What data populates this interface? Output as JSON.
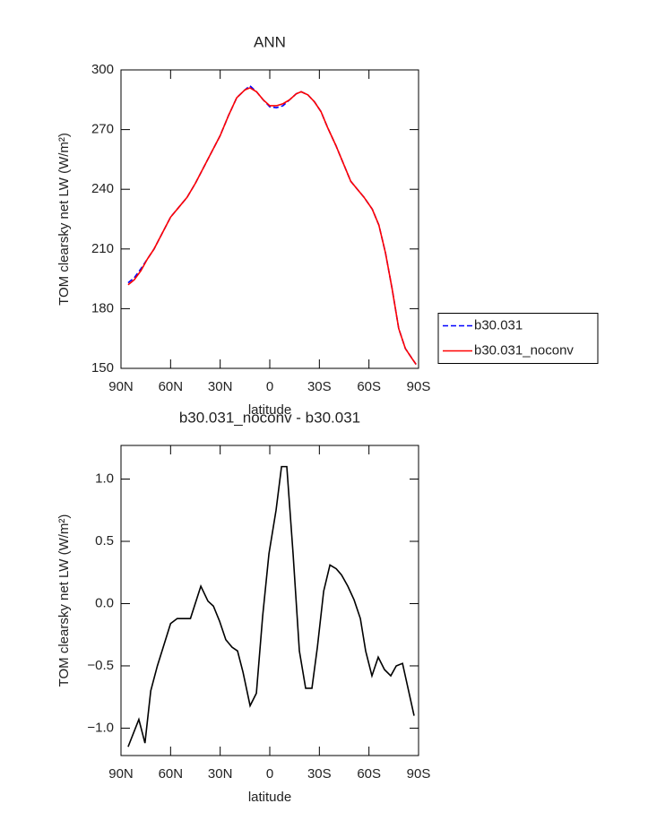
{
  "chart_data": [
    {
      "type": "line",
      "title": "ANN",
      "x_label": "latitude",
      "y_label": "TOM clearsky net LW (W/m²)",
      "xlim": [
        90,
        -90
      ],
      "xticks": [
        {
          "value": 90,
          "label": "90N"
        },
        {
          "value": 60,
          "label": "60N"
        },
        {
          "value": 30,
          "label": "30N"
        },
        0,
        {
          "value": -30,
          "label": "30S"
        },
        {
          "value": -60,
          "label": "60S"
        },
        {
          "value": -90,
          "label": "90S"
        }
      ],
      "ylim": [
        150,
        300
      ],
      "yticks": [
        150,
        180,
        210,
        240,
        270,
        300
      ],
      "legend": "outside-right",
      "x": [
        85.7,
        82,
        78,
        74,
        70,
        65,
        60,
        55,
        50,
        45,
        40,
        35,
        30,
        25,
        20,
        15,
        12,
        8,
        4,
        0,
        -4,
        -8,
        -12,
        -16,
        -19,
        -23,
        -27,
        -31,
        -35,
        -40,
        -45,
        -49,
        -53,
        -57,
        -62,
        -66,
        -70,
        -74,
        -78,
        -82,
        -86,
        -88.5
      ],
      "series": [
        {
          "name": "b30.031",
          "color": "#0000ff",
          "line_style": "dashed",
          "values": [
            193,
            195.5,
            200,
            205,
            210,
            218,
            226,
            231,
            236,
            243,
            251,
            259,
            267,
            277,
            286,
            290,
            292,
            289,
            285,
            281.5,
            281,
            282,
            285,
            288,
            289,
            287.5,
            284,
            279,
            271,
            262,
            252,
            244,
            240,
            236,
            230,
            222,
            208,
            190,
            170,
            160,
            155,
            152
          ]
        },
        {
          "name": "b30.031_noconv",
          "color": "#ff0000",
          "line_style": "solid",
          "values": [
            192,
            194.5,
            199,
            205,
            210,
            218,
            226,
            231,
            236,
            243,
            251,
            259,
            267,
            277,
            286,
            290,
            291,
            289,
            285,
            282,
            282,
            283,
            285,
            288,
            289,
            287.5,
            284,
            279,
            271,
            262,
            252,
            244,
            240,
            236,
            230,
            222,
            208,
            190,
            170,
            160,
            155,
            152
          ]
        }
      ]
    },
    {
      "type": "line",
      "title": "b30.031_noconv - b30.031",
      "x_label": "latitude",
      "y_label": "TOM clearsky net LW (W/m²)",
      "xlim": [
        90,
        -90
      ],
      "xticks": [
        {
          "value": 90,
          "label": "90N"
        },
        {
          "value": 60,
          "label": "60N"
        },
        {
          "value": 30,
          "label": "30N"
        },
        0,
        {
          "value": -30,
          "label": "30S"
        },
        {
          "value": -60,
          "label": "60S"
        },
        {
          "value": -90,
          "label": "90S"
        }
      ],
      "ylim": [
        -1.22,
        1.27
      ],
      "yticks": [
        {
          "value": -1,
          "label": "−1.0"
        },
        {
          "value": -0.5,
          "label": "−0.5"
        },
        {
          "value": 0,
          "label": "0.0"
        },
        {
          "value": 0.5,
          "label": "0.5"
        },
        {
          "value": 1,
          "label": "1.0"
        }
      ],
      "x": [
        85.7,
        79.2,
        75.5,
        72,
        68,
        64,
        60,
        56,
        52,
        48,
        41.7,
        37.4,
        34.1,
        30.4,
        26.6,
        22.8,
        19.5,
        16.2,
        11.9,
        8.1,
        4.3,
        0.5,
        -3.8,
        -7.1,
        -10.3,
        -14.1,
        -17.9,
        -21.7,
        -25.5,
        -28.8,
        -32.6,
        -36.4,
        -40.2,
        -43.4,
        -47.2,
        -51,
        -54.8,
        -58,
        -61.8,
        -65.6,
        -69.4,
        -73.2,
        -76.5,
        -80.3,
        -87.3
      ],
      "series": [
        {
          "name": "b30.031_noconv - b30.031",
          "color": "#000000",
          "line_style": "solid",
          "values": [
            -1.15,
            -0.93,
            -1.12,
            -0.7,
            -0.5,
            -0.33,
            -0.16,
            -0.12,
            -0.12,
            -0.12,
            0.14,
            0.02,
            -0.02,
            -0.14,
            -0.29,
            -0.35,
            -0.38,
            -0.55,
            -0.82,
            -0.72,
            -0.1,
            0.4,
            0.75,
            1.1,
            1.1,
            0.4,
            -0.38,
            -0.68,
            -0.68,
            -0.35,
            0.1,
            0.31,
            0.28,
            0.23,
            0.14,
            0.03,
            -0.12,
            -0.38,
            -0.58,
            -0.43,
            -0.53,
            -0.58,
            -0.5,
            -0.48,
            -0.9
          ]
        }
      ]
    }
  ]
}
